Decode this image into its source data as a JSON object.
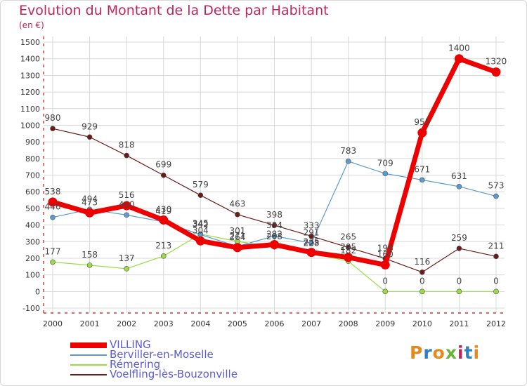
{
  "title": "Evolution du Montant de la Dette par Habitant",
  "unit": "(en €)",
  "logo": {
    "text": "Proxiti",
    "colors": [
      "#e8891c",
      "#2f7fc1",
      "#e8891c",
      "#6bb33b",
      "#c0245d",
      "#2f7fc1",
      "#e8891c"
    ]
  },
  "chart_data": {
    "type": "line",
    "title": "Evolution du Montant de la Dette par Habitant",
    "ylabel": "(en €)",
    "x": [
      "2000",
      "2001",
      "2002",
      "2003",
      "2004",
      "2005",
      "2006",
      "2007",
      "2008",
      "2009",
      "2010",
      "2011",
      "2012"
    ],
    "ylim": [
      -100,
      1500
    ],
    "yticks": [
      -100,
      0,
      100,
      200,
      300,
      400,
      500,
      600,
      700,
      800,
      900,
      1000,
      1100,
      1200,
      1300,
      1400,
      1500
    ],
    "grid": true,
    "legend_position": "bottom-left",
    "series": [
      {
        "name": "Voelfling-lès-Bouzonville",
        "color": "#6b1a1a",
        "width": 1.2,
        "values": [
          980,
          929,
          818,
          699,
          579,
          463,
          398,
          333,
          265,
          198,
          116,
          259,
          211
        ],
        "labels": [
          "980",
          "929",
          "818",
          "699",
          "579",
          "463",
          "398",
          "333",
          "265",
          "198",
          "116",
          "259",
          "211"
        ]
      },
      {
        "name": "Rémering",
        "color": "#99dd44",
        "width": 1.2,
        "values": [
          177,
          158,
          137,
          213,
          345,
          301,
          268,
          228,
          182,
          0,
          0,
          0,
          0
        ],
        "labels": [
          "177",
          "158",
          "137",
          "213",
          "345",
          "301",
          "268",
          "228",
          "182",
          "0",
          "0",
          "0",
          "0"
        ]
      },
      {
        "name": "Berviller-en-Moselle",
        "color": "#5a9ad0",
        "width": 1.2,
        "values": [
          446,
          494,
          460,
          419,
          342,
          271,
          334,
          291,
          783,
          709,
          671,
          631,
          573
        ],
        "labels": [
          "446",
          "494",
          "460",
          "419",
          "342",
          "271",
          "334",
          "291",
          "783",
          "709",
          "671",
          "631",
          "573"
        ]
      },
      {
        "name": "VILLING",
        "color": "#ee0000",
        "width": 7,
        "values": [
          538,
          473,
          516,
          430,
          304,
          264,
          282,
          235,
          205,
          160,
          955,
          1400,
          1320
        ],
        "labels": [
          "538",
          "473",
          "516",
          "430",
          "304",
          "264",
          "282",
          "235",
          "205",
          "160",
          "955",
          "1400",
          "1320"
        ]
      }
    ]
  },
  "legend": [
    {
      "label": "VILLING",
      "color": "#ee0000",
      "thickness": 8
    },
    {
      "label": "Berviller-en-Moselle",
      "color": "#5a9ad0",
      "thickness": 2
    },
    {
      "label": "Rémering",
      "color": "#99dd44",
      "thickness": 2
    },
    {
      "label": "Voelfling-lès-Bouzonville",
      "color": "#6b1a1a",
      "thickness": 2
    }
  ]
}
